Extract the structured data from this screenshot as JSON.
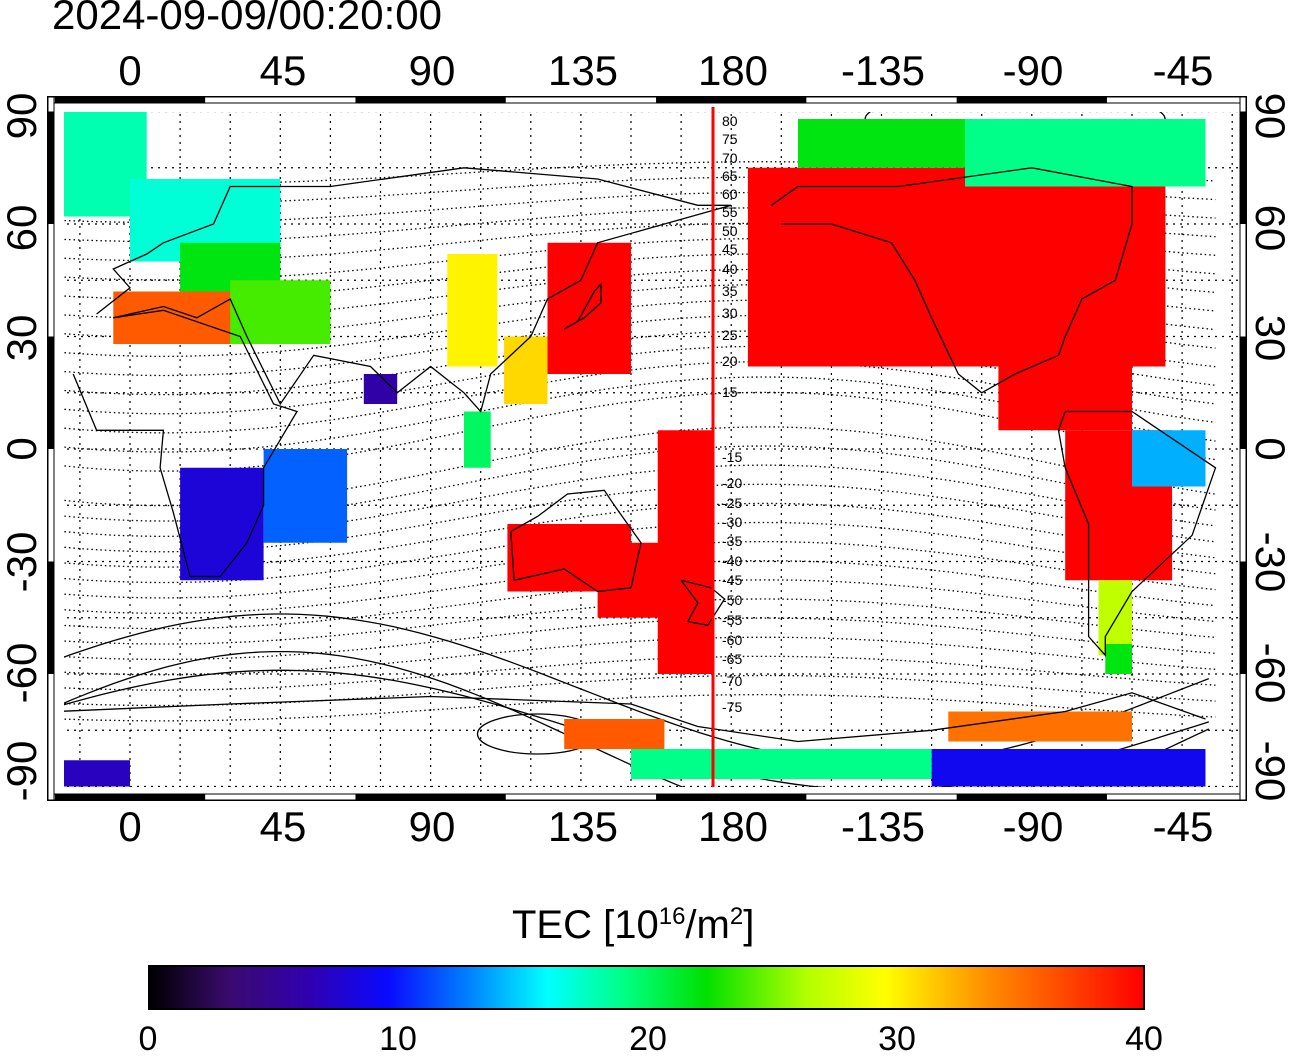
{
  "timestamp": "2024-09-09/00:20:00",
  "lon_ticks_top": [
    "0",
    "45",
    "90",
    "135",
    "180",
    "-135",
    "-90",
    "-45"
  ],
  "lon_ticks_bottom": [
    "0",
    "45",
    "90",
    "135",
    "180",
    "-135",
    "-90",
    "-45"
  ],
  "lat_ticks_left": [
    "90",
    "60",
    "30",
    "0",
    "-30",
    "-60",
    "-90"
  ],
  "lat_ticks_right": [
    "90",
    "60",
    "30",
    "0",
    "-30",
    "-60",
    "-90"
  ],
  "magnetic_labels": [
    "80",
    "75",
    "70",
    "65",
    "60",
    "55",
    "50",
    "45",
    "40",
    "35",
    "30",
    "25",
    "20",
    "15",
    "-15",
    "-20",
    "-25",
    "-30",
    "-35",
    "-40",
    "-45",
    "-50",
    "-55",
    "-60",
    "-65",
    "-70",
    "-75"
  ],
  "colorbar": {
    "label": "TEC  [10",
    "label_exp": "16",
    "label_unit": "/m",
    "label_unit_exp": "2",
    "label_close": "]",
    "ticks": [
      "0",
      "10",
      "20",
      "30",
      "40"
    ],
    "min": 0,
    "max": 40
  },
  "colors": {
    "high_tec": "#ff0000",
    "low_tec": "#1a0040",
    "terminator_line": "#ff0000"
  },
  "map": {
    "projection": "equirectangular",
    "lon_range": [
      -23,
      322
    ],
    "lat_range": [
      -90,
      90
    ],
    "grid": "dotted"
  }
}
